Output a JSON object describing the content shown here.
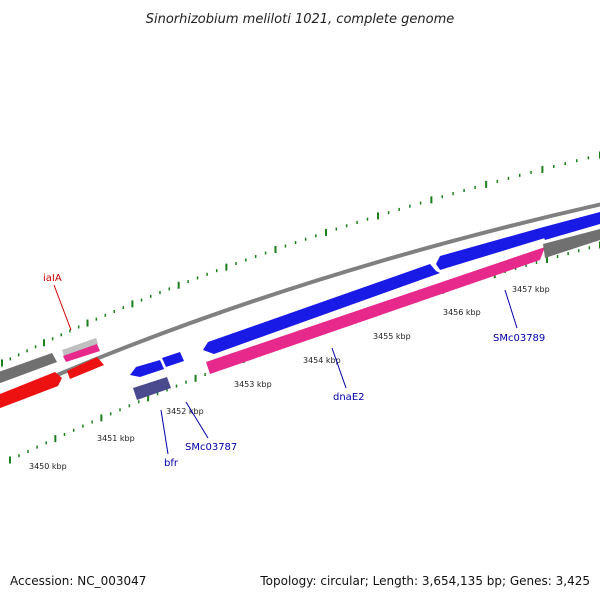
{
  "title": "Sinorhizobium meliloti 1021, complete genome",
  "footer": {
    "accession": "Accession: NC_003047",
    "stats": "Topology: circular; Length: 3,654,135 bp; Genes: 3,425"
  },
  "colors": {
    "backbone": "#808080",
    "ticks": "#1a7f1a",
    "plus_strand_cds": "#1a1ae6",
    "minus_strand_cds": "#e6298a",
    "other_gene_red": "#ee1111",
    "other_gene_grey": "#707070",
    "pale_grey": "#c0c0c0",
    "slate": "#4a4a8e",
    "label_red": "#cc0000",
    "label_blue": "#0000aa"
  },
  "scale_labels": [
    "3450 kbp",
    "3451 kbp",
    "3452 kbp",
    "3453 kbp",
    "3454 kbp",
    "3455 kbp",
    "3456 kbp",
    "3457 kbp"
  ],
  "gene_labels": [
    {
      "name": "iaIA",
      "color": "red"
    },
    {
      "name": "bfr",
      "color": "blue"
    },
    {
      "name": "SMc03787",
      "color": "blue"
    },
    {
      "name": "dnaE2",
      "color": "blue"
    },
    {
      "name": "SMc03789",
      "color": "blue"
    }
  ]
}
